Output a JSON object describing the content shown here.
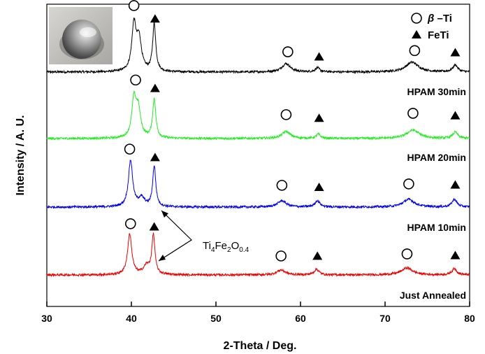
{
  "chart_data": {
    "type": "line",
    "xlabel": "2-Theta / Deg.",
    "ylabel": "Intensity / A. U.",
    "xlim": [
      30,
      80
    ],
    "xticks": [
      30,
      40,
      50,
      60,
      70,
      80
    ],
    "legend": {
      "placement": "top-right",
      "entries": [
        {
          "marker": "circle",
          "label_prefix": "β",
          "label_suffix": " –Ti"
        },
        {
          "marker": "triangle",
          "label": "FeTi"
        }
      ]
    },
    "annotation": {
      "base": "Ti",
      "sub1": "4",
      "mid": "Fe",
      "sub2": "2",
      "mid2": "O",
      "sub3": "0.4"
    },
    "inset_image": "button-shaped-metal-sample-photo",
    "series": [
      {
        "name": "HPAM 30min",
        "color": "#000000",
        "baseline": 0,
        "peaks": [
          {
            "x": 40.3,
            "h": 65,
            "w": 0.3
          },
          {
            "x": 40.9,
            "h": 45,
            "w": 0.35
          },
          {
            "x": 42.7,
            "h": 68,
            "w": 0.22
          },
          {
            "x": 58.3,
            "h": 12,
            "w": 0.6
          },
          {
            "x": 62.0,
            "h": 6,
            "w": 0.3
          },
          {
            "x": 73.2,
            "h": 14,
            "w": 0.9
          },
          {
            "x": 78.3,
            "h": 10,
            "w": 0.35
          }
        ],
        "markers": [
          {
            "type": "circle",
            "x": 40.3
          },
          {
            "type": "triangle",
            "x": 42.8
          },
          {
            "type": "circle",
            "x": 58.5
          },
          {
            "type": "triangle",
            "x": 62.2
          },
          {
            "type": "circle",
            "x": 73.5
          },
          {
            "type": "triangle",
            "x": 78.3
          }
        ]
      },
      {
        "name": "HPAM 20min",
        "color": "#22ee22",
        "baseline": 1,
        "peaks": [
          {
            "x": 40.3,
            "h": 52,
            "w": 0.3
          },
          {
            "x": 40.8,
            "h": 40,
            "w": 0.35
          },
          {
            "x": 42.7,
            "h": 56,
            "w": 0.22
          },
          {
            "x": 58.3,
            "h": 10,
            "w": 0.6
          },
          {
            "x": 62.1,
            "h": 6,
            "w": 0.3
          },
          {
            "x": 73.3,
            "h": 12,
            "w": 0.9
          },
          {
            "x": 78.3,
            "h": 9,
            "w": 0.35
          }
        ],
        "markers": [
          {
            "type": "circle",
            "x": 40.5
          },
          {
            "type": "triangle",
            "x": 42.8
          },
          {
            "type": "circle",
            "x": 58.3
          },
          {
            "type": "triangle",
            "x": 62.2
          },
          {
            "type": "circle",
            "x": 73.3
          },
          {
            "type": "triangle",
            "x": 78.3
          }
        ]
      },
      {
        "name": "HPAM 10min",
        "color": "#0000ee",
        "baseline": 2,
        "peaks": [
          {
            "x": 39.9,
            "h": 66,
            "w": 0.3
          },
          {
            "x": 41.2,
            "h": 12,
            "w": 0.45
          },
          {
            "x": 42.7,
            "h": 58,
            "w": 0.22
          },
          {
            "x": 57.8,
            "h": 9,
            "w": 0.6
          },
          {
            "x": 62.0,
            "h": 9,
            "w": 0.35
          },
          {
            "x": 72.8,
            "h": 11,
            "w": 0.8
          },
          {
            "x": 78.2,
            "h": 11,
            "w": 0.35
          }
        ],
        "markers": [
          {
            "type": "circle",
            "x": 39.8
          },
          {
            "type": "triangle",
            "x": 42.8
          },
          {
            "type": "circle",
            "x": 57.8
          },
          {
            "type": "triangle",
            "x": 62.2
          },
          {
            "type": "circle",
            "x": 72.8
          },
          {
            "type": "triangle",
            "x": 78.3
          }
        ]
      },
      {
        "name": "Just Annealed",
        "color": "#ee0000",
        "baseline": 3,
        "peaks": [
          {
            "x": 39.8,
            "h": 58,
            "w": 0.3
          },
          {
            "x": 41.8,
            "h": 12,
            "w": 0.45
          },
          {
            "x": 42.6,
            "h": 56,
            "w": 0.22
          },
          {
            "x": 57.7,
            "h": 7,
            "w": 0.6
          },
          {
            "x": 61.9,
            "h": 8,
            "w": 0.35
          },
          {
            "x": 72.6,
            "h": 10,
            "w": 0.8
          },
          {
            "x": 78.2,
            "h": 9,
            "w": 0.35
          }
        ],
        "markers": [
          {
            "type": "circle",
            "x": 39.9
          },
          {
            "type": "triangle",
            "x": 42.7
          },
          {
            "type": "circle",
            "x": 57.7
          },
          {
            "type": "triangle",
            "x": 62.0
          },
          {
            "type": "circle",
            "x": 72.6
          },
          {
            "type": "triangle",
            "x": 78.3
          }
        ]
      }
    ]
  }
}
